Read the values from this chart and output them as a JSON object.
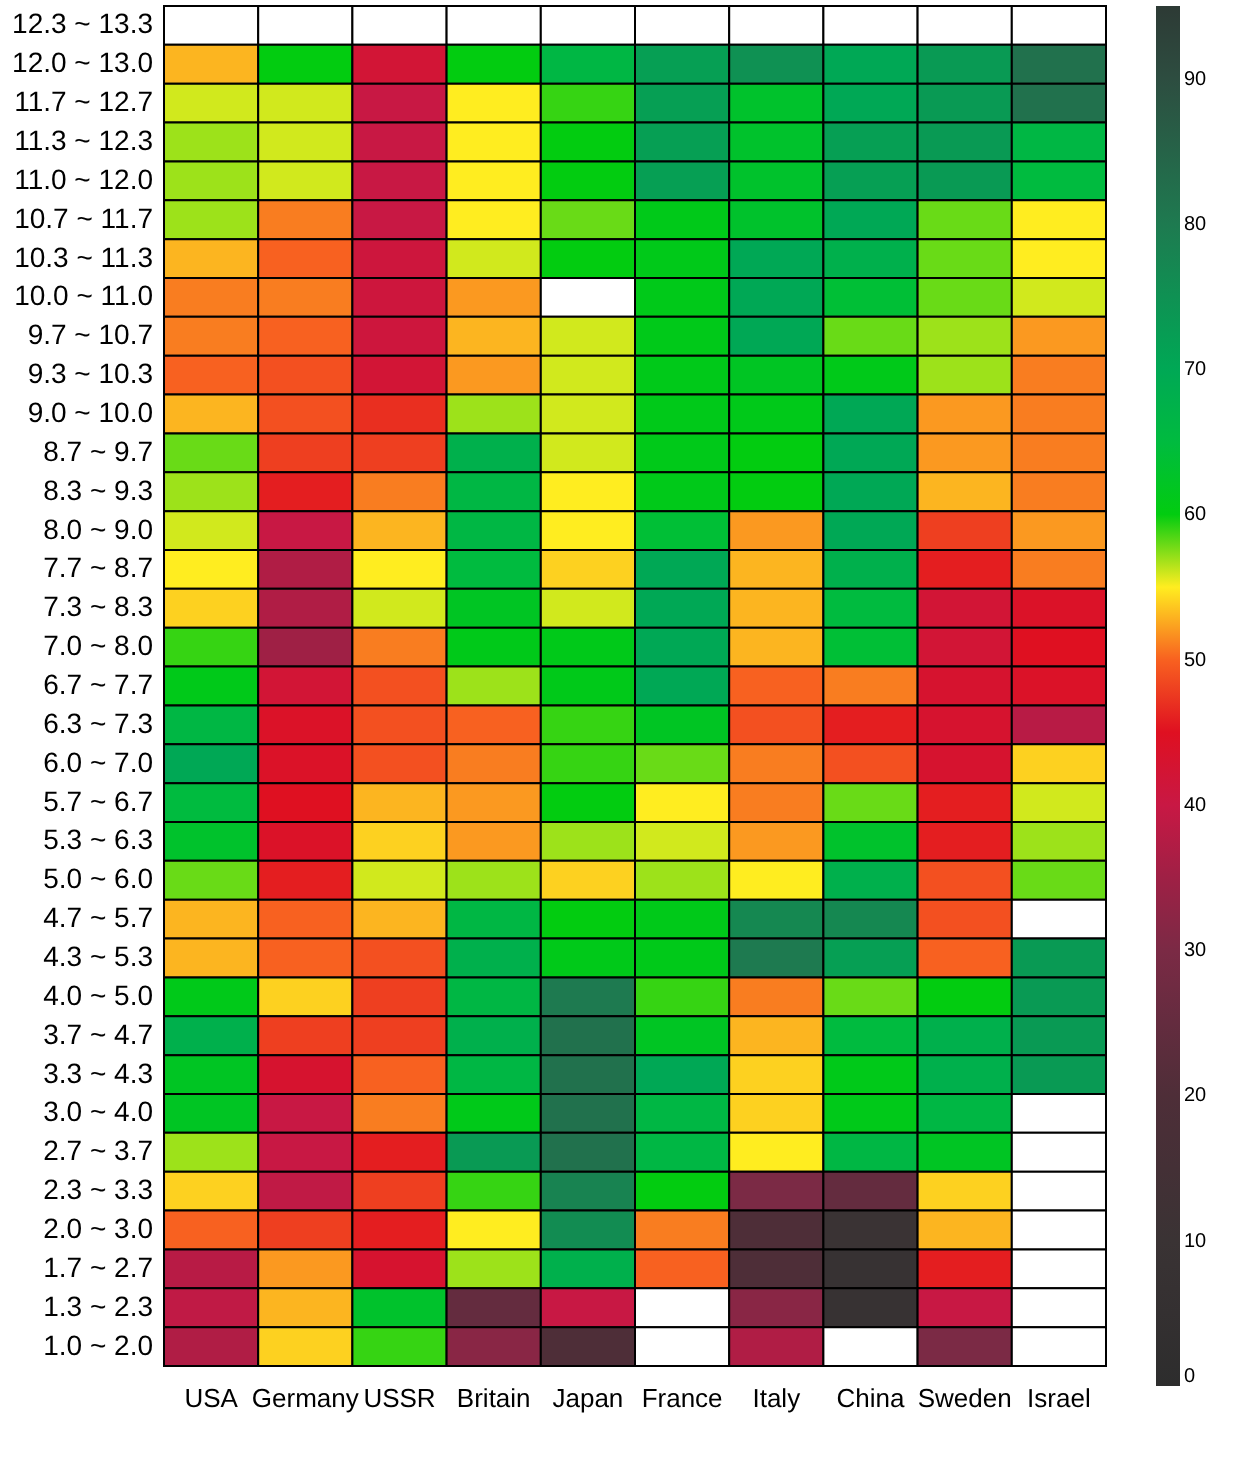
{
  "chart_data": {
    "type": "heatmap",
    "categories": [
      "USA",
      "Germany",
      "USSR",
      "Britain",
      "Japan",
      "France",
      "Italy",
      "China",
      "Sweden",
      "Israel"
    ],
    "y_categories": [
      "12.3 ~ 13.3",
      "12.0 ~ 13.0",
      "11.7 ~ 12.7",
      "11.3 ~ 12.3",
      "11.0 ~ 12.0",
      "10.7 ~ 11.7",
      "10.3 ~ 11.3",
      "10.0 ~ 11.0",
      "9.7 ~ 10.7",
      "9.3 ~ 10.3",
      "9.0 ~ 10.0",
      "8.7 ~ 9.7",
      "8.3 ~ 9.3",
      "8.0 ~ 9.0",
      "7.7 ~ 8.7",
      "7.3 ~ 8.3",
      "7.0 ~ 8.0",
      "6.7 ~ 7.7",
      "6.3 ~ 7.3",
      "6.0 ~ 7.0",
      "5.7 ~ 6.7",
      "5.3 ~ 6.3",
      "5.0 ~ 6.0",
      "4.7 ~ 5.7",
      "4.3 ~ 5.3",
      "4.0 ~ 5.0",
      "3.7 ~ 4.7",
      "3.3 ~ 4.3",
      "3.0 ~ 4.0",
      "2.7 ~ 3.7",
      "2.3 ~ 3.3",
      "2.0 ~ 3.0",
      "1.7 ~ 2.7",
      "1.3 ~ 2.3",
      "1.0 ~ 2.0"
    ],
    "cells": [
      [
        null,
        null,
        null,
        null,
        null,
        null,
        null,
        null,
        null,
        null
      ],
      [
        53,
        60,
        42,
        60,
        66,
        72,
        75,
        70,
        73,
        82
      ],
      [
        56,
        56,
        40,
        55,
        59,
        72,
        63,
        70,
        73,
        82
      ],
      [
        57,
        56,
        40,
        55,
        60,
        72,
        63,
        72,
        73,
        66
      ],
      [
        57,
        56,
        40,
        55,
        60,
        72,
        63,
        72,
        73,
        65
      ],
      [
        57,
        51,
        40,
        55,
        58,
        61,
        63,
        70,
        58,
        55
      ],
      [
        53,
        50,
        41,
        56,
        60,
        61,
        70,
        68,
        58,
        55
      ],
      [
        51,
        51,
        41,
        52,
        null,
        61,
        70,
        64,
        58,
        56
      ],
      [
        51,
        50,
        41,
        53,
        56,
        61,
        70,
        58,
        57,
        52
      ],
      [
        50,
        49,
        42,
        52,
        56,
        61,
        62,
        61,
        57,
        51
      ],
      [
        53,
        49,
        47,
        57,
        56,
        61,
        61,
        70,
        52,
        51
      ],
      [
        58,
        48,
        48,
        68,
        56,
        61,
        60,
        70,
        52,
        51
      ],
      [
        57,
        46,
        51,
        66,
        55,
        61,
        60,
        70,
        53,
        51
      ],
      [
        56,
        40,
        53,
        66,
        55,
        64,
        52,
        70,
        48,
        52
      ],
      [
        55,
        37,
        55,
        65,
        54,
        70,
        53,
        68,
        46,
        51
      ],
      [
        54,
        37,
        56,
        62,
        56,
        70,
        53,
        65,
        42,
        44
      ],
      [
        59,
        35,
        51,
        61,
        61,
        70,
        53,
        64,
        42,
        45
      ],
      [
        61,
        42,
        49,
        57,
        61,
        70,
        50,
        51,
        43,
        44
      ],
      [
        66,
        44,
        49,
        50,
        59,
        62,
        49,
        46,
        43,
        38
      ],
      [
        70,
        44,
        49,
        51,
        59,
        58,
        51,
        49,
        43,
        54
      ],
      [
        65,
        45,
        53,
        52,
        60,
        55,
        51,
        58,
        46,
        56
      ],
      [
        63,
        44,
        54,
        52,
        57,
        56,
        52,
        63,
        46,
        57
      ],
      [
        58,
        46,
        56,
        57,
        54,
        57,
        55,
        68,
        49,
        58
      ],
      [
        53,
        50,
        53,
        66,
        60,
        61,
        77,
        77,
        49,
        null
      ],
      [
        53,
        50,
        49,
        68,
        61,
        61,
        80,
        72,
        50,
        73
      ],
      [
        61,
        54,
        48,
        66,
        80,
        59,
        51,
        58,
        60,
        73
      ],
      [
        68,
        48,
        48,
        68,
        82,
        62,
        53,
        65,
        68,
        73
      ],
      [
        62,
        43,
        50,
        66,
        82,
        70,
        54,
        61,
        68,
        73
      ],
      [
        62,
        40,
        51,
        61,
        82,
        66,
        54,
        61,
        66,
        null
      ],
      [
        57,
        40,
        46,
        73,
        82,
        66,
        55,
        66,
        62,
        null
      ],
      [
        54,
        39,
        48,
        59,
        78,
        60,
        30,
        25,
        54,
        null
      ],
      [
        50,
        48,
        46,
        55,
        76,
        51,
        20,
        10,
        53,
        null
      ],
      [
        38,
        52,
        43,
        57,
        68,
        50,
        20,
        8,
        46,
        null
      ],
      [
        39,
        53,
        63,
        25,
        40,
        null,
        32,
        8,
        40,
        null
      ],
      [
        37,
        54,
        59,
        32,
        20,
        null,
        37,
        null,
        30,
        null
      ]
    ],
    "clim": [
      0,
      95
    ],
    "cticks": [
      0,
      10,
      20,
      30,
      40,
      50,
      60,
      70,
      80,
      90
    ]
  }
}
